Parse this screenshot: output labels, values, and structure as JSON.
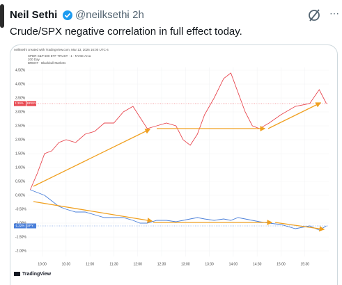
{
  "header": {
    "name": "Neil Sethi",
    "handle": "@neilksethi",
    "time": "· 2h",
    "more": "···"
  },
  "tweet": {
    "text": "Crude/SPX negative correlation in full effect today."
  },
  "chart": {
    "caption": "neilksethi created with TradingView.com, Mar 13, 2026 16:00 UTC-4",
    "legend": [
      "SPDR S&P 500 ETF TRUST · 1 · NYSE Arca",
      "200 Day",
      "BRENT · Blackbull Markets"
    ],
    "footer": "TradingView",
    "chart_data": {
      "type": "line",
      "x": [
        9.75,
        9.9,
        10.05,
        10.2,
        10.35,
        10.5,
        10.7,
        10.9,
        11.1,
        11.3,
        11.5,
        11.7,
        11.9,
        12.05,
        12.2,
        12.4,
        12.6,
        12.8,
        12.95,
        13.1,
        13.25,
        13.4,
        13.6,
        13.8,
        13.95,
        14.1,
        14.25,
        14.4,
        14.55,
        14.75,
        15.0,
        15.3,
        15.6,
        15.8,
        15.95
      ],
      "series": [
        {
          "name": "BRENT",
          "color": "#e8474f",
          "value_label": "3.39%",
          "values": [
            0.2,
            0.8,
            1.5,
            1.6,
            1.9,
            2.0,
            1.9,
            2.2,
            2.3,
            2.6,
            2.6,
            3.0,
            3.2,
            2.8,
            2.4,
            2.5,
            2.6,
            2.5,
            2.0,
            1.8,
            2.2,
            2.9,
            3.5,
            4.2,
            4.4,
            3.7,
            3.0,
            2.5,
            2.4,
            2.6,
            2.9,
            3.2,
            3.3,
            3.8,
            3.3
          ]
        },
        {
          "name": "SPY",
          "color": "#4a7fd9",
          "value_label": "-1.22%",
          "values": [
            0.2,
            0.1,
            0.0,
            -0.2,
            -0.4,
            -0.5,
            -0.6,
            -0.6,
            -0.7,
            -0.8,
            -0.8,
            -0.8,
            -0.9,
            -1.0,
            -1.0,
            -0.9,
            -0.9,
            -0.95,
            -0.9,
            -0.85,
            -0.8,
            -0.85,
            -0.9,
            -0.85,
            -0.9,
            -0.8,
            -0.85,
            -0.9,
            -0.95,
            -1.0,
            -1.05,
            -1.2,
            -1.1,
            -1.25,
            -1.1
          ]
        }
      ],
      "xlim": [
        9.7,
        16.0
      ],
      "xticks": [
        {
          "value": 10,
          "label": "10:00"
        },
        {
          "value": 10.5,
          "label": "10:30"
        },
        {
          "value": 11,
          "label": "11:00"
        },
        {
          "value": 11.5,
          "label": "11:30"
        },
        {
          "value": 12,
          "label": "12:00"
        },
        {
          "value": 12.5,
          "label": "12:30"
        },
        {
          "value": 13,
          "label": "13:00"
        },
        {
          "value": 13.5,
          "label": "13:30"
        },
        {
          "value": 14,
          "label": "14:00"
        },
        {
          "value": 14.5,
          "label": "14:30"
        },
        {
          "value": 15,
          "label": "15:00"
        },
        {
          "value": 15.5,
          "label": "15:30"
        }
      ],
      "ylim": [
        -2.2,
        4.6
      ],
      "yticks": [
        {
          "value": 4.5,
          "label": "4.50%"
        },
        {
          "value": 4,
          "label": "4.00%"
        },
        {
          "value": 3.5,
          "label": "3.50%"
        },
        {
          "value": 3,
          "label": "3.00%"
        },
        {
          "value": 2.5,
          "label": "2.50%"
        },
        {
          "value": 2,
          "label": "2.00%"
        },
        {
          "value": 1.5,
          "label": "1.50%"
        },
        {
          "value": 1,
          "label": "1.00%"
        },
        {
          "value": 0.5,
          "label": "0.50%"
        },
        {
          "value": 0,
          "label": "0.00%"
        },
        {
          "value": -0.5,
          "label": "-0.50%"
        },
        {
          "value": -1,
          "label": "-1.00%"
        },
        {
          "value": -1.5,
          "label": "-1.50%"
        },
        {
          "value": -2,
          "label": "-2.00%"
        }
      ],
      "grid": true
    }
  }
}
